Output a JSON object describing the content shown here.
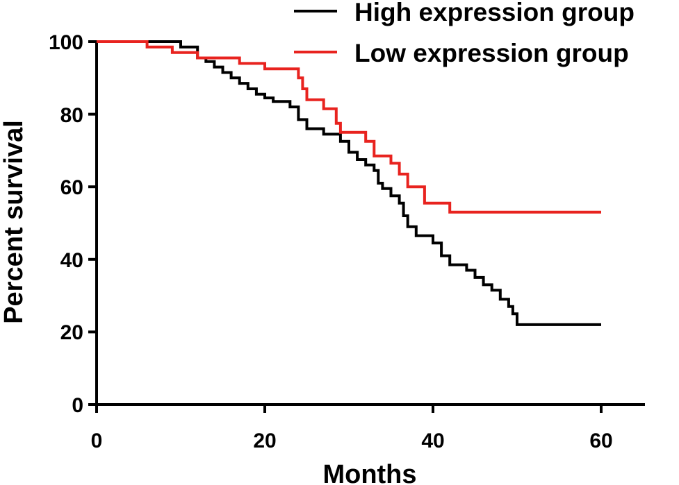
{
  "chart_data": {
    "type": "line",
    "xlabel": "Months",
    "ylabel": "Percent survival",
    "xlim": [
      0,
      65
    ],
    "ylim": [
      0,
      100
    ],
    "x_ticks": [
      0,
      20,
      40,
      60
    ],
    "y_ticks": [
      0,
      20,
      40,
      60,
      80,
      100
    ],
    "x_tick_labels": [
      "0",
      "20",
      "40",
      "60"
    ],
    "y_tick_labels": [
      "0",
      "20",
      "40",
      "60",
      "80",
      "100"
    ],
    "grid": false,
    "legend_position": "top-right",
    "series": [
      {
        "name": "High expression group",
        "color": "#000000",
        "step": true,
        "points": [
          [
            0,
            100
          ],
          [
            10,
            98.5
          ],
          [
            12,
            95.5
          ],
          [
            13,
            94.5
          ],
          [
            14,
            93
          ],
          [
            15,
            91.5
          ],
          [
            16,
            90
          ],
          [
            17,
            88.5
          ],
          [
            18,
            87
          ],
          [
            19,
            85.5
          ],
          [
            20,
            84.5
          ],
          [
            21,
            83.5
          ],
          [
            23,
            82
          ],
          [
            24,
            78.5
          ],
          [
            25,
            76
          ],
          [
            27,
            74.5
          ],
          [
            29,
            72.5
          ],
          [
            30,
            69.5
          ],
          [
            31,
            67.5
          ],
          [
            32,
            66
          ],
          [
            33,
            64.5
          ],
          [
            33.5,
            61
          ],
          [
            34,
            59.5
          ],
          [
            35,
            57.5
          ],
          [
            36,
            55.5
          ],
          [
            36.5,
            52
          ],
          [
            37,
            49
          ],
          [
            38,
            46.5
          ],
          [
            40,
            44.5
          ],
          [
            41,
            41
          ],
          [
            42,
            38.5
          ],
          [
            44,
            37
          ],
          [
            45,
            35
          ],
          [
            46,
            33
          ],
          [
            47,
            31.5
          ],
          [
            48,
            29
          ],
          [
            49,
            27
          ],
          [
            49.5,
            25
          ],
          [
            50,
            22
          ],
          [
            60,
            22
          ]
        ]
      },
      {
        "name": "Low expression group",
        "color": "#e8231f",
        "step": true,
        "points": [
          [
            0,
            100
          ],
          [
            6,
            98.5
          ],
          [
            9,
            97
          ],
          [
            12,
            95.5
          ],
          [
            17,
            94
          ],
          [
            20,
            92.5
          ],
          [
            24,
            90
          ],
          [
            24.5,
            87
          ],
          [
            25,
            84
          ],
          [
            27,
            81.5
          ],
          [
            28.5,
            77.5
          ],
          [
            29,
            75
          ],
          [
            32,
            72.5
          ],
          [
            33,
            68.5
          ],
          [
            35,
            66.5
          ],
          [
            36,
            63.5
          ],
          [
            37,
            60
          ],
          [
            39,
            55.5
          ],
          [
            42,
            53
          ],
          [
            60,
            53
          ]
        ]
      }
    ]
  }
}
